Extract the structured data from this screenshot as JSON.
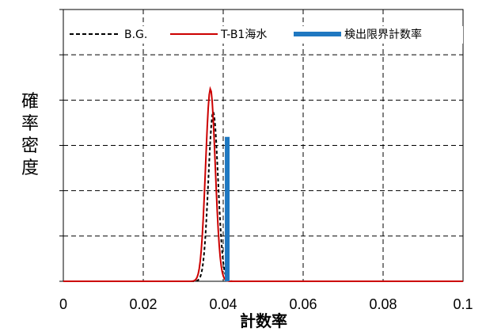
{
  "chart_data": {
    "type": "line",
    "xlabel": "計数率",
    "ylabel": "確率密度",
    "xlim": [
      0,
      0.1
    ],
    "x_ticks": [
      "0",
      "0.02",
      "0.04",
      "0.06",
      "0.08",
      "0.1"
    ],
    "grid": true,
    "legend_position": "top",
    "series": [
      {
        "name": "B.G.",
        "style": "dashed",
        "color": "#000000",
        "peak_x": 0.0375,
        "sigma": 0.0012,
        "peak_y": 0.88
      },
      {
        "name": "T-B1海水",
        "style": "solid",
        "color": "#cc0000",
        "peak_x": 0.0368,
        "sigma": 0.0012,
        "peak_y": 1.0
      },
      {
        "name": "検出限界計数率",
        "style": "solid-thick",
        "color": "#1f78c1",
        "x": 0.041,
        "y_top": 0.75
      }
    ]
  }
}
